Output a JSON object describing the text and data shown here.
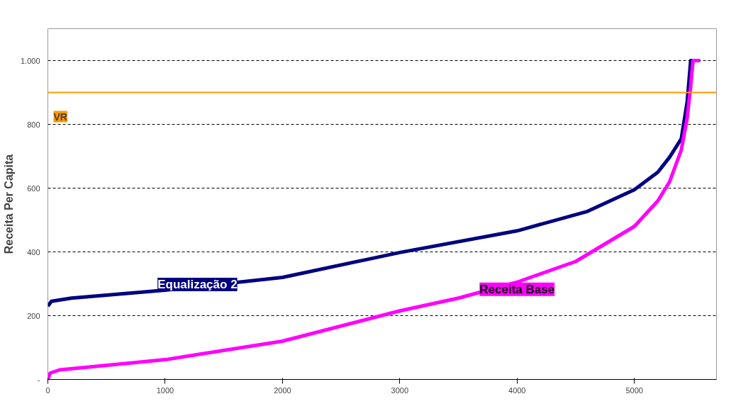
{
  "chart_data": {
    "type": "line",
    "ylabel": "Receita Per Capita",
    "xlim": [
      0,
      5700
    ],
    "ylim": [
      0,
      1100
    ],
    "xticks": [
      0,
      1000,
      2000,
      3000,
      4000,
      5000
    ],
    "yticks": [
      {
        "value": 0,
        "label": "-"
      },
      200,
      400,
      600,
      800,
      {
        "value": 1000,
        "label": "1.000"
      }
    ],
    "grid": "y",
    "marker": "none",
    "line_style": "solid",
    "series": [
      {
        "name": "Equalização 2",
        "color": "#000080",
        "x": [
          0,
          30,
          200,
          1000,
          2000,
          3000,
          4000,
          4600,
          5000,
          5200,
          5300,
          5400,
          5450,
          5480,
          5560
        ],
        "values": [
          230,
          245,
          255,
          280,
          320,
          398,
          466,
          527,
          595,
          650,
          697,
          755,
          870,
          1000,
          1000
        ]
      },
      {
        "name": "Receita Base",
        "color": "#ff00ff",
        "x": [
          0,
          20,
          100,
          1000,
          2000,
          3000,
          3500,
          4000,
          4500,
          5000,
          5200,
          5300,
          5400,
          5450,
          5480,
          5500,
          5560
        ],
        "values": [
          0,
          20,
          30,
          62,
          120,
          215,
          255,
          305,
          370,
          480,
          560,
          620,
          720,
          820,
          920,
          1000,
          1000
        ]
      }
    ],
    "ref_lines": [
      {
        "axis": "y",
        "value": 900,
        "label": "VR",
        "color": "#ff9900",
        "line_style": "solid"
      }
    ]
  }
}
